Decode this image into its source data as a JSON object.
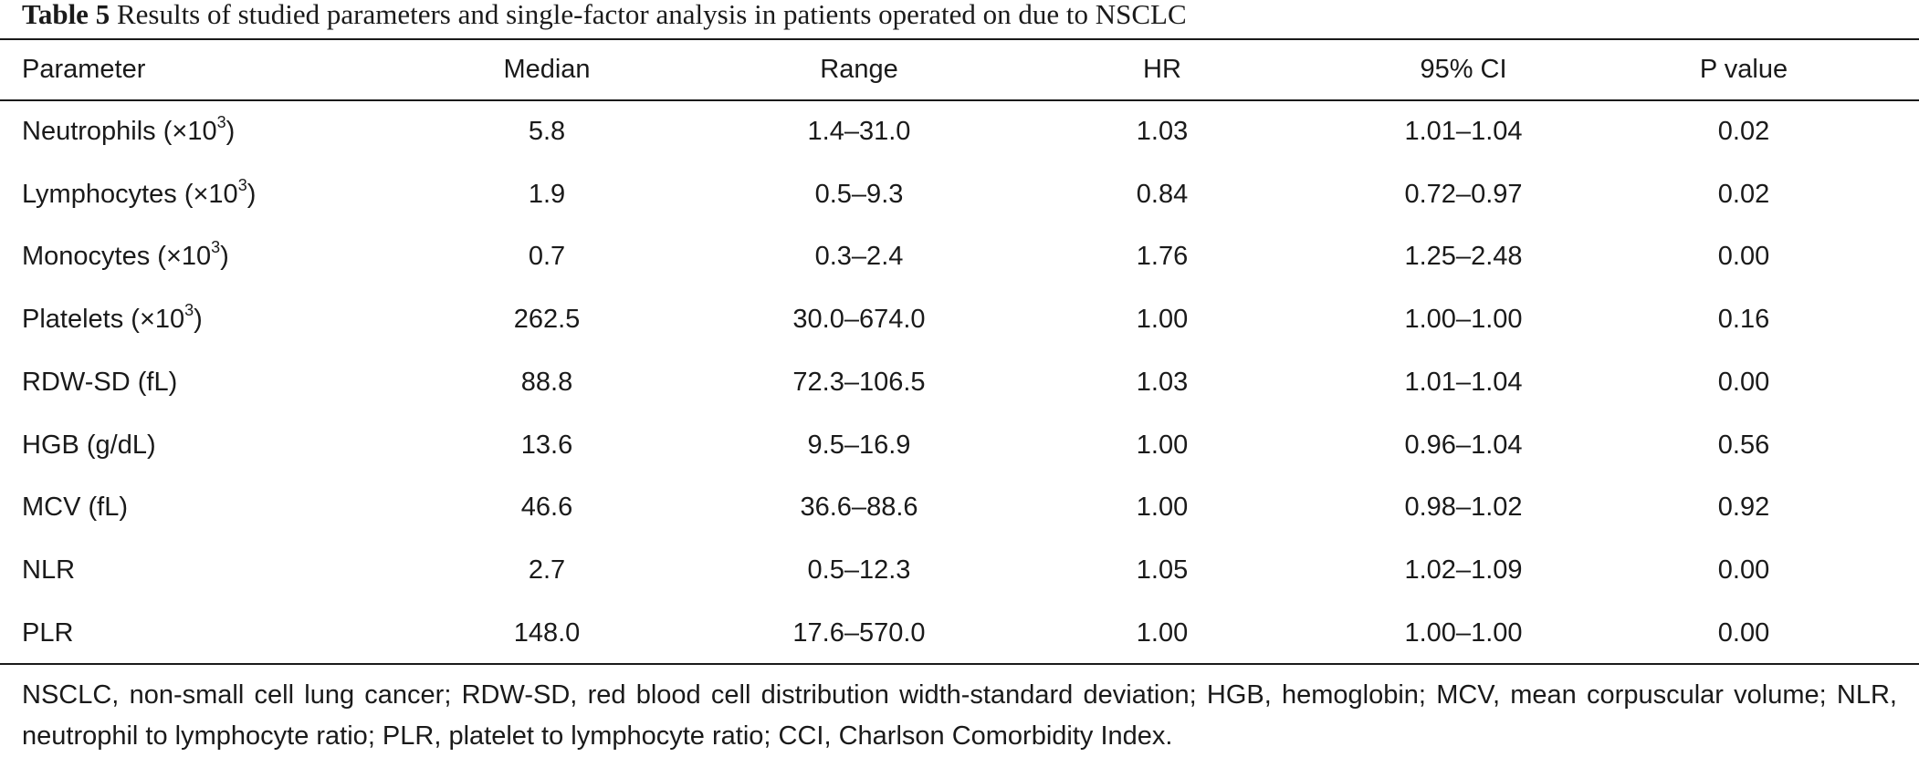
{
  "caption": {
    "label": "Table 5",
    "text": " Results of studied parameters and single-factor analysis in patients operated on due to NSCLC"
  },
  "headers": [
    "Parameter",
    "Median",
    "Range",
    "HR",
    "95% CI",
    "P value"
  ],
  "rows": [
    {
      "parameter": "Neutrophils (×10",
      "sup": "3",
      "suffix": ")",
      "median": "5.8",
      "range": "1.4–31.0",
      "hr": "1.03",
      "ci": "1.01–1.04",
      "p": "0.02"
    },
    {
      "parameter": "Lymphocytes (×10",
      "sup": "3",
      "suffix": ")",
      "median": "1.9",
      "range": "0.5–9.3",
      "hr": "0.84",
      "ci": "0.72–0.97",
      "p": "0.02"
    },
    {
      "parameter": "Monocytes (×10",
      "sup": "3",
      "suffix": ")",
      "median": "0.7",
      "range": "0.3–2.4",
      "hr": "1.76",
      "ci": "1.25–2.48",
      "p": "0.00"
    },
    {
      "parameter": "Platelets (×10",
      "sup": "3",
      "suffix": ")",
      "median": "262.5",
      "range": "30.0–674.0",
      "hr": "1.00",
      "ci": "1.00–1.00",
      "p": "0.16"
    },
    {
      "parameter": "RDW-SD (fL)",
      "sup": "",
      "suffix": "",
      "median": "88.8",
      "range": "72.3–106.5",
      "hr": "1.03",
      "ci": "1.01–1.04",
      "p": "0.00"
    },
    {
      "parameter": "HGB (g/dL)",
      "sup": "",
      "suffix": "",
      "median": "13.6",
      "range": "9.5–16.9",
      "hr": "1.00",
      "ci": "0.96–1.04",
      "p": "0.56"
    },
    {
      "parameter": "MCV (fL)",
      "sup": "",
      "suffix": "",
      "median": "46.6",
      "range": "36.6–88.6",
      "hr": "1.00",
      "ci": "0.98–1.02",
      "p": "0.92"
    },
    {
      "parameter": "NLR",
      "sup": "",
      "suffix": "",
      "median": "2.7",
      "range": "0.5–12.3",
      "hr": "1.05",
      "ci": "1.02–1.09",
      "p": "0.00"
    },
    {
      "parameter": "PLR",
      "sup": "",
      "suffix": "",
      "median": "148.0",
      "range": "17.6–570.0",
      "hr": "1.00",
      "ci": "1.00–1.00",
      "p": "0.00"
    }
  ],
  "footnote": "NSCLC, non-small cell lung cancer; RDW-SD, red blood cell distribution width-standard deviation; HGB, hemoglobin; MCV, mean corpuscular volume; NLR, neutrophil to lymphocyte ratio; PLR, platelet to lymphocyte ratio; CCI, Charlson Comorbidity Index."
}
